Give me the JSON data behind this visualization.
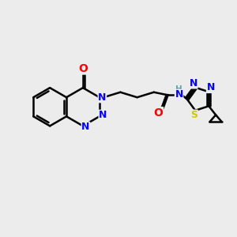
{
  "bg_color": "#ececec",
  "atom_colors": {
    "C": "#000000",
    "N": "#0000ff",
    "O": "#ff0000",
    "S": "#cccc00",
    "H": "#5fa8a8"
  },
  "bond_color": "#000000",
  "bond_width": 1.8,
  "fig_size": [
    3.0,
    3.0
  ],
  "dpi": 100
}
